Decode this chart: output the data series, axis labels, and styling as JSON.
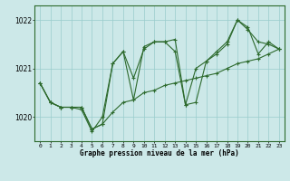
{
  "title": "Graphe pression niveau de la mer (hPa)",
  "xlabel_hours": [
    0,
    1,
    2,
    3,
    4,
    5,
    6,
    7,
    8,
    9,
    10,
    11,
    12,
    13,
    14,
    15,
    16,
    17,
    18,
    19,
    20,
    21,
    22,
    23
  ],
  "line1": [
    1020.7,
    1020.3,
    1020.2,
    1020.2,
    1020.2,
    1019.75,
    1019.85,
    1021.1,
    1021.35,
    1020.35,
    1021.45,
    1021.55,
    1021.55,
    1021.6,
    1020.25,
    1021.0,
    1021.15,
    1021.3,
    1021.5,
    1022.0,
    1021.8,
    1021.55,
    1021.5,
    1021.4
  ],
  "line2": [
    1020.7,
    1020.3,
    1020.2,
    1020.2,
    1020.15,
    1019.7,
    1020.0,
    1021.1,
    1021.35,
    1020.8,
    1021.4,
    1021.55,
    1021.55,
    1021.35,
    1020.25,
    1020.3,
    1021.15,
    1021.35,
    1021.55,
    1022.0,
    1021.85,
    1021.3,
    1021.55,
    1021.4
  ],
  "line3": [
    1020.7,
    1020.3,
    1020.2,
    1020.2,
    1020.2,
    1019.75,
    1019.85,
    1020.1,
    1020.3,
    1020.35,
    1020.5,
    1020.55,
    1020.65,
    1020.7,
    1020.75,
    1020.8,
    1020.85,
    1020.9,
    1021.0,
    1021.1,
    1021.15,
    1021.2,
    1021.3,
    1021.4
  ],
  "line_color": "#2d6a2d",
  "bg_color": "#cce8e8",
  "grid_color": "#99cccc",
  "ylim": [
    1019.5,
    1022.3
  ],
  "yticks": [
    1020,
    1021,
    1022
  ],
  "marker": "+",
  "markersize": 3,
  "linewidth": 0.8
}
